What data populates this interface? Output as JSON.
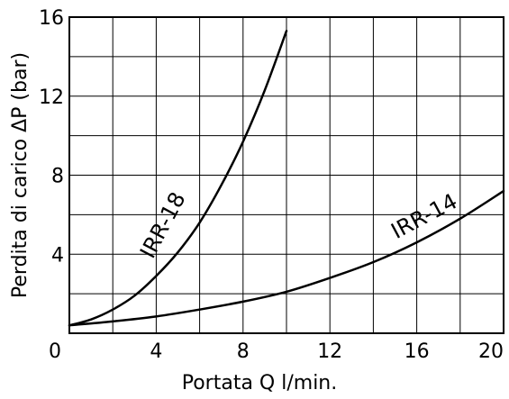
{
  "chart_data": {
    "type": "line",
    "title": "",
    "xlabel": "Portata Q l/min.",
    "ylabel": "Perdita di carico ΔP (bar)",
    "xlim": [
      0,
      20
    ],
    "ylim": [
      0,
      16
    ],
    "x_ticks": [
      0,
      4,
      8,
      12,
      16,
      20
    ],
    "y_ticks": [
      4,
      8,
      12,
      16
    ],
    "x_tick_labels": [
      "0",
      "4",
      "8",
      "12",
      "16",
      "20"
    ],
    "y_tick_labels": [
      "4",
      "8",
      "12",
      "16"
    ],
    "grid": true,
    "grid_step_x": 2,
    "grid_step_y": 2,
    "series": [
      {
        "name": "IRR-18",
        "x": [
          0,
          1,
          2,
          3,
          4,
          5,
          6,
          7,
          8,
          9,
          10
        ],
        "y": [
          0.4,
          0.7,
          1.2,
          1.9,
          2.9,
          4.1,
          5.6,
          7.5,
          9.7,
          12.3,
          15.3
        ]
      },
      {
        "name": "IRR-14",
        "x": [
          0,
          2,
          4,
          6,
          8,
          10,
          12,
          14,
          16,
          18,
          20
        ],
        "y": [
          0.4,
          0.6,
          0.85,
          1.2,
          1.6,
          2.1,
          2.8,
          3.6,
          4.6,
          5.8,
          7.2
        ]
      }
    ]
  }
}
